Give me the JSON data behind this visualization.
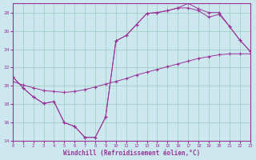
{
  "xlabel": "Windchill (Refroidissement éolien,°C)",
  "bg_color": "#cce8ee",
  "grid_color": "#99ccbb",
  "line_color": "#993399",
  "xlim": [
    0,
    23
  ],
  "ylim": [
    14,
    29
  ],
  "xticks": [
    0,
    1,
    2,
    3,
    4,
    5,
    6,
    7,
    8,
    9,
    10,
    11,
    12,
    13,
    14,
    15,
    16,
    17,
    18,
    19,
    20,
    21,
    22,
    23
  ],
  "yticks": [
    14,
    16,
    18,
    20,
    22,
    24,
    26,
    28
  ],
  "curve1_x": [
    0,
    1,
    2,
    3,
    4,
    5,
    6,
    7,
    8,
    9,
    10,
    11,
    12,
    13,
    14,
    15,
    16,
    17,
    18,
    19,
    20,
    21,
    22,
    23
  ],
  "curve1_y": [
    21.0,
    19.8,
    18.8,
    18.1,
    18.3,
    16.0,
    15.6,
    14.4,
    14.4,
    16.6,
    24.9,
    25.5,
    26.7,
    27.9,
    28.0,
    28.2,
    28.5,
    29.0,
    28.4,
    28.0,
    28.0,
    26.5,
    25.0,
    23.8
  ],
  "curve2_x": [
    0,
    1,
    2,
    3,
    4,
    5,
    6,
    7,
    8,
    9,
    10,
    11,
    12,
    13,
    14,
    15,
    16,
    17,
    18,
    19,
    20,
    21,
    22,
    23
  ],
  "curve2_y": [
    21.0,
    19.8,
    18.8,
    18.1,
    18.3,
    16.0,
    15.6,
    14.4,
    14.4,
    16.6,
    24.9,
    25.5,
    26.7,
    27.9,
    28.0,
    28.2,
    28.5,
    28.5,
    28.2,
    27.5,
    27.8,
    26.5,
    25.0,
    23.8
  ],
  "curve3_x": [
    0,
    1,
    2,
    3,
    4,
    5,
    6,
    7,
    8,
    9,
    10,
    11,
    12,
    13,
    14,
    15,
    16,
    17,
    18,
    19,
    20,
    21,
    22,
    23
  ],
  "curve3_y": [
    20.5,
    20.1,
    19.8,
    19.5,
    19.4,
    19.3,
    19.4,
    19.6,
    19.9,
    20.2,
    20.5,
    20.8,
    21.2,
    21.5,
    21.8,
    22.1,
    22.4,
    22.7,
    23.0,
    23.2,
    23.4,
    23.5,
    23.5,
    23.5
  ]
}
